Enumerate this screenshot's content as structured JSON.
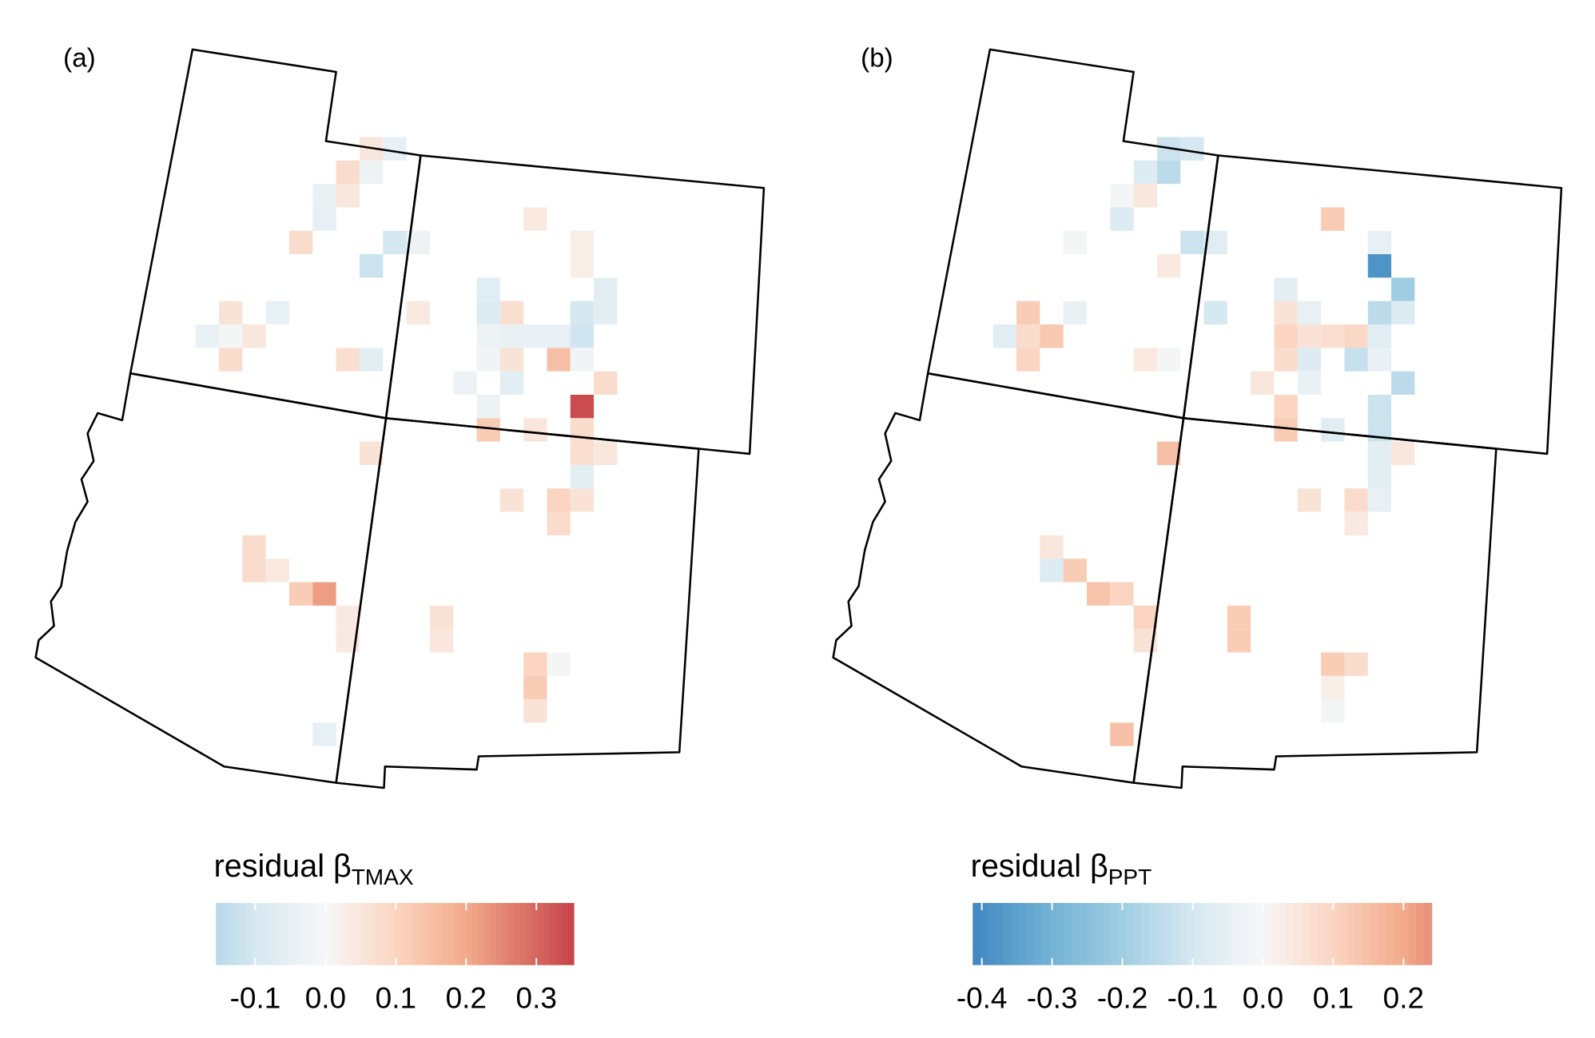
{
  "chart_data": [
    {
      "type": "grid-map",
      "label": "(a)",
      "legend_title": "residual β",
      "legend_subscript": "TMAX",
      "values": [
        0.05,
        -0.05,
        0.08,
        -0.03,
        -0.04,
        0.05,
        -0.05,
        0.04,
        0.08,
        -0.1,
        -0.03,
        0.03,
        -0.12,
        0.03,
        -0.06,
        -0.07,
        0.06,
        -0.05,
        0.04,
        -0.08,
        0.07,
        -0.1,
        -0.06,
        -0.04,
        -0.01,
        0.05,
        -0.03,
        -0.04,
        -0.04,
        -0.05,
        -0.11,
        0.08,
        0.07,
        -0.06,
        -0.02,
        0.06,
        0.15,
        -0.02,
        -0.03,
        -0.06,
        0.08,
        -0.03,
        0.34,
        0.12,
        0.05,
        0.08,
        0.06,
        0.07,
        0.05,
        -0.06,
        0.06,
        0.1,
        0.06,
        0.08,
        0.08,
        0.08,
        0.04,
        0.12,
        0.22,
        0.04,
        0.06,
        0.04,
        0.05,
        0.1,
        -0.01,
        0.12,
        0.06,
        -0.05
      ],
      "colorbar_lim": [
        -0.156,
        0.353
      ],
      "colorbar_ticks": [
        -0.1,
        {
          "value": 0,
          "label": "0.0"
        },
        0.1,
        0.2,
        0.3
      ]
    },
    {
      "type": "grid-map",
      "label": "(b)",
      "legend_title": "residual β",
      "legend_subscript": "PPT",
      "values": [
        -0.12,
        -0.1,
        -0.08,
        -0.15,
        -0.01,
        0.05,
        -0.08,
        0.12,
        -0.01,
        -0.12,
        -0.07,
        -0.05,
        0.04,
        -0.38,
        -0.06,
        -0.2,
        0.12,
        -0.04,
        -0.1,
        0.06,
        -0.05,
        -0.15,
        -0.08,
        -0.07,
        0.08,
        0.13,
        0.1,
        0.06,
        0.07,
        0.09,
        -0.07,
        0.1,
        0.04,
        -0.01,
        0.08,
        -0.08,
        -0.13,
        -0.04,
        0.05,
        -0.04,
        -0.15,
        0.1,
        -0.12,
        0.12,
        -0.07,
        -0.12,
        0.15,
        -0.06,
        0.05,
        -0.07,
        0.06,
        0.08,
        -0.05,
        0.04,
        0.05,
        -0.08,
        0.12,
        0.14,
        0.1,
        0.1,
        0.12,
        0.06,
        0.12,
        0.12,
        0.08,
        0.03,
        -0.01,
        0.15
      ],
      "colorbar_lim": [
        -0.413,
        0.24
      ],
      "colorbar_ticks": [
        -0.4,
        -0.3,
        -0.2,
        -0.1,
        {
          "value": 0,
          "label": "0.0"
        },
        0.1,
        0.2
      ]
    }
  ]
}
